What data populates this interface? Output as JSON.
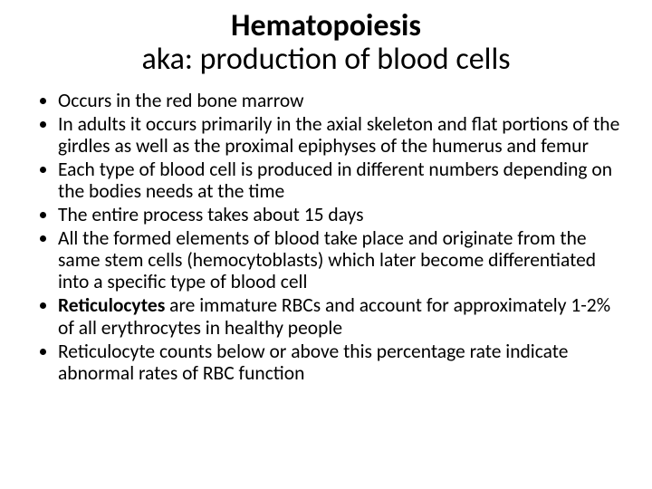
{
  "title": {
    "main": "Hematopoiesis",
    "sub": "aka: production of blood cells"
  },
  "bullets": [
    {
      "segments": [
        {
          "text": "Occurs in the red bone marrow",
          "bold": false
        }
      ]
    },
    {
      "segments": [
        {
          "text": "In adults it occurs primarily in the axial skeleton and flat portions of the girdles as well as the proximal epiphyses of the humerus and femur",
          "bold": false
        }
      ]
    },
    {
      "segments": [
        {
          "text": "Each type of blood cell is produced in different numbers depending on the bodies needs at the time",
          "bold": false
        }
      ]
    },
    {
      "segments": [
        {
          "text": "The entire process takes about 15 days",
          "bold": false
        }
      ]
    },
    {
      "segments": [
        {
          "text": "All the formed elements of blood take place and originate from the same stem cells (hemocytoblasts) which later become differentiated into a specific type of blood cell",
          "bold": false
        }
      ]
    },
    {
      "segments": [
        {
          "text": "Reticulocytes ",
          "bold": true
        },
        {
          "text": "are immature RBCs and account for approximately 1-2% of all erythrocytes in healthy people",
          "bold": false
        }
      ]
    },
    {
      "segments": [
        {
          "text": "Reticulocyte counts below or above this percentage rate indicate abnormal rates of RBC function",
          "bold": false
        }
      ]
    }
  ],
  "colors": {
    "background": "#ffffff",
    "text": "#000000"
  },
  "typography": {
    "title_fontsize": 34,
    "bullet_fontsize": 21.5,
    "font_family": "Calibri"
  }
}
